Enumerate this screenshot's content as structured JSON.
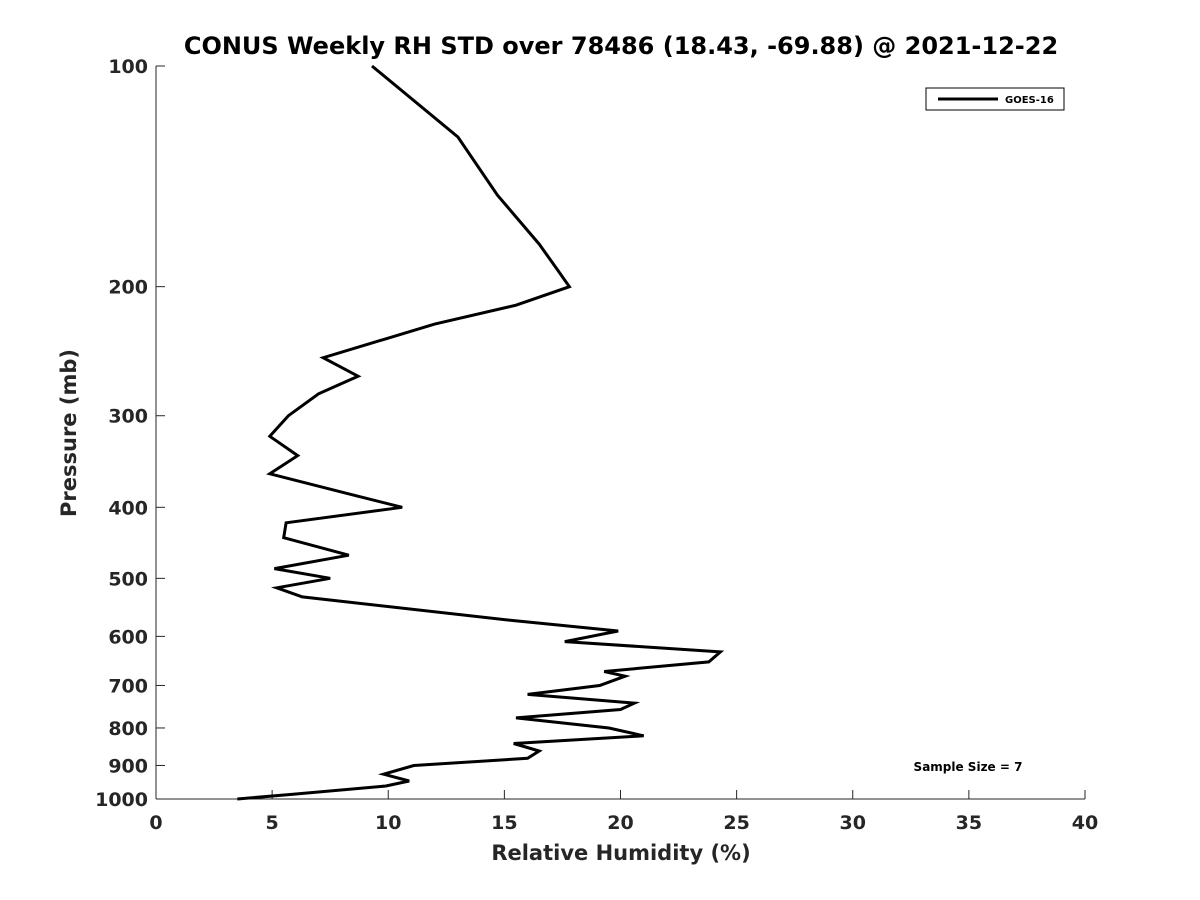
{
  "chart_data": {
    "type": "line",
    "title": "CONUS Weekly RH STD over 78486 (18.43, -69.88) @ 2021-12-22",
    "xlabel": "Relative Humidity (%)",
    "ylabel": "Pressure (mb)",
    "xlim": [
      0,
      40
    ],
    "ylim": [
      100,
      1000
    ],
    "yscale": "log",
    "y_reversed": true,
    "grid": false,
    "legend_position": "top-right",
    "x_ticks": [
      "0",
      "5",
      "10",
      "15",
      "20",
      "25",
      "30",
      "35",
      "40"
    ],
    "y_ticks": [
      "100",
      "200",
      "300",
      "400",
      "500",
      "600",
      "700",
      "800",
      "900",
      "1000"
    ],
    "annotation": "Sample Size = 7",
    "series": [
      {
        "name": "GOES-16",
        "color": "#000000",
        "points": [
          [
            9.3,
            100
          ],
          [
            13.0,
            125
          ],
          [
            14.7,
            150
          ],
          [
            16.5,
            175
          ],
          [
            17.3,
            190
          ],
          [
            17.8,
            200
          ],
          [
            15.5,
            212
          ],
          [
            12.0,
            225
          ],
          [
            7.2,
            250
          ],
          [
            8.7,
            265
          ],
          [
            7.0,
            280
          ],
          [
            5.7,
            300
          ],
          [
            4.9,
            320
          ],
          [
            6.1,
            340
          ],
          [
            4.9,
            360
          ],
          [
            8.5,
            385
          ],
          [
            10.6,
            400
          ],
          [
            5.6,
            420
          ],
          [
            5.5,
            440
          ],
          [
            8.3,
            465
          ],
          [
            5.1,
            485
          ],
          [
            7.5,
            500
          ],
          [
            5.2,
            515
          ],
          [
            6.3,
            530
          ],
          [
            15.2,
            570
          ],
          [
            19.9,
            590
          ],
          [
            17.6,
            610
          ],
          [
            24.3,
            630
          ],
          [
            23.8,
            650
          ],
          [
            19.3,
            670
          ],
          [
            20.2,
            680
          ],
          [
            19.1,
            700
          ],
          [
            16.0,
            720
          ],
          [
            20.6,
            740
          ],
          [
            20.0,
            755
          ],
          [
            15.5,
            775
          ],
          [
            19.5,
            800
          ],
          [
            21.0,
            820
          ],
          [
            15.4,
            840
          ],
          [
            16.5,
            860
          ],
          [
            16.0,
            880
          ],
          [
            11.1,
            900
          ],
          [
            9.8,
            925
          ],
          [
            10.9,
            945
          ],
          [
            9.9,
            960
          ],
          [
            5.9,
            985
          ],
          [
            3.5,
            1000
          ]
        ]
      }
    ]
  }
}
